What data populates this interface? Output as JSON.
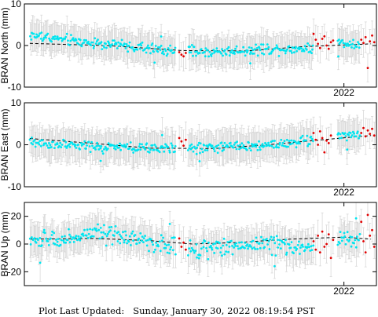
{
  "footer": {
    "label": "Plot Last Updated:",
    "timestamp": "Sunday, January 30, 2022 08:19:54 PST"
  },
  "colors": {
    "cyan": "#00e5f0",
    "red": "#e00000",
    "errorbar": "#d4d4d4",
    "trend": "#000000"
  },
  "chart_data": [
    {
      "type": "scatter",
      "ylabel": "BRAN North (mm)",
      "ylim": [
        -10,
        10
      ],
      "yticks": [
        -10,
        0,
        10
      ],
      "xlim": [
        2019.05,
        2022.3
      ],
      "xtick_label": "2022",
      "xtick_value": 2022.0,
      "grid": false,
      "errorbars": true,
      "error_half_range": 3.5,
      "trend": {
        "x": [
          2019.1,
          2019.8,
          2020.5,
          2021.1,
          2021.6,
          2022.25
        ],
        "y": [
          0.5,
          0.0,
          -1.2,
          -1.3,
          -0.3,
          0.4
        ]
      },
      "series": [
        {
          "color": "cyan",
          "anchors_x": [
            2019.1,
            2019.3,
            2019.6,
            2019.9,
            2020.2,
            2020.5,
            2020.8,
            2021.0,
            2021.3,
            2021.55,
            2021.7,
            2021.8,
            2022.0,
            2022.1
          ],
          "anchors_y": [
            2.5,
            1.8,
            0.8,
            0.2,
            -0.8,
            -1.4,
            -1.6,
            -1.3,
            -0.8,
            -0.8,
            -0.5,
            0.5,
            0.6,
            0.5
          ],
          "noise": 1.0,
          "ranges": [
            [
              2019.1,
              2020.45
            ],
            [
              2020.56,
              2021.72
            ],
            [
              2021.94,
              2022.15
            ]
          ],
          "count": 330
        },
        {
          "color": "red",
          "points": [
            [
              2020.48,
              -1.6
            ],
            [
              2020.5,
              -2.2
            ],
            [
              2020.52,
              -2.6
            ],
            [
              2020.54,
              -1.8
            ],
            [
              2021.72,
              2.8
            ],
            [
              2021.74,
              1.4
            ],
            [
              2021.76,
              0.4
            ],
            [
              2021.78,
              -0.6
            ],
            [
              2021.8,
              1.6
            ],
            [
              2021.82,
              2.2
            ],
            [
              2021.84,
              0.0
            ],
            [
              2021.86,
              -0.8
            ],
            [
              2021.88,
              0.8
            ],
            [
              2021.9,
              1.2
            ],
            [
              2022.16,
              1.4
            ],
            [
              2022.18,
              0.6
            ],
            [
              2022.2,
              2.0
            ],
            [
              2022.22,
              -5.4
            ],
            [
              2022.24,
              1.0
            ],
            [
              2022.26,
              2.4
            ],
            [
              2022.28,
              0.8
            ]
          ]
        }
      ]
    },
    {
      "type": "scatter",
      "ylabel": "BRAN East (mm)",
      "ylim": [
        -10,
        10
      ],
      "yticks": [
        -10,
        0,
        10
      ],
      "xlim": [
        2019.05,
        2022.3
      ],
      "xtick_label": "2022",
      "xtick_value": 2022.0,
      "grid": false,
      "errorbars": true,
      "error_half_range": 3.6,
      "trend": {
        "x": [
          2019.1,
          2019.7,
          2020.2,
          2020.8,
          2021.3,
          2021.8,
          2022.25
        ],
        "y": [
          1.5,
          0.3,
          -0.8,
          -0.9,
          0.0,
          1.2,
          2.2
        ]
      },
      "series": [
        {
          "color": "cyan",
          "anchors_x": [
            2019.1,
            2019.4,
            2019.7,
            2020.0,
            2020.3,
            2020.6,
            2020.9,
            2021.2,
            2021.5,
            2021.7,
            2022.0,
            2022.1
          ],
          "anchors_y": [
            0.5,
            0.0,
            -0.6,
            -0.8,
            -0.9,
            -0.8,
            -0.5,
            -0.2,
            0.5,
            1.2,
            2.0,
            2.2
          ],
          "noise": 1.0,
          "ranges": [
            [
              2019.1,
              2020.45
            ],
            [
              2020.56,
              2021.72
            ],
            [
              2021.94,
              2022.15
            ]
          ],
          "count": 330
        },
        {
          "color": "red",
          "points": [
            [
              2020.48,
              1.6
            ],
            [
              2020.5,
              0.8
            ],
            [
              2020.52,
              -0.2
            ],
            [
              2020.54,
              1.2
            ],
            [
              2021.72,
              2.8
            ],
            [
              2021.74,
              1.2
            ],
            [
              2021.76,
              0.0
            ],
            [
              2021.78,
              3.2
            ],
            [
              2021.8,
              1.6
            ],
            [
              2021.82,
              -1.8
            ],
            [
              2021.84,
              1.0
            ],
            [
              2021.86,
              0.4
            ],
            [
              2021.88,
              2.2
            ],
            [
              2022.16,
              2.8
            ],
            [
              2022.18,
              4.0
            ],
            [
              2022.2,
              2.0
            ],
            [
              2022.22,
              3.4
            ],
            [
              2022.24,
              2.6
            ],
            [
              2022.26,
              3.8
            ],
            [
              2022.28,
              2.2
            ]
          ]
        }
      ]
    },
    {
      "type": "scatter",
      "ylabel": "BRAN Up (mm)",
      "ylim": [
        -30,
        30
      ],
      "yticks": [
        -20,
        0,
        20
      ],
      "xlim": [
        2019.05,
        2022.3
      ],
      "xtick_label": "2022",
      "xtick_value": 2022.0,
      "grid": false,
      "errorbars": true,
      "error_half_range": 11.0,
      "trend": {
        "x": [
          2019.1,
          2019.7,
          2020.2,
          2020.6,
          2021.0,
          2021.5,
          2022.0,
          2022.25
        ],
        "y": [
          3.5,
          4.0,
          2.5,
          0.0,
          1.0,
          3.5,
          5.0,
          3.5
        ]
      },
      "series": [
        {
          "color": "cyan",
          "anchors_x": [
            2019.1,
            2019.4,
            2019.7,
            2020.0,
            2020.3,
            2020.55,
            2020.8,
            2021.1,
            2021.4,
            2021.6,
            2021.75,
            2022.0,
            2022.15
          ],
          "anchors_y": [
            2.0,
            3.5,
            8.0,
            4.0,
            0.0,
            -4.0,
            -3.0,
            0.0,
            0.0,
            -3.0,
            -2.0,
            4.0,
            2.0
          ],
          "noise": 5.0,
          "ranges": [
            [
              2019.1,
              2020.45
            ],
            [
              2020.56,
              2021.72
            ],
            [
              2021.94,
              2022.15
            ]
          ],
          "count": 330
        },
        {
          "color": "red",
          "points": [
            [
              2020.48,
              4.0
            ],
            [
              2020.5,
              -2.0
            ],
            [
              2020.52,
              1.0
            ],
            [
              2020.54,
              -4.0
            ],
            [
              2021.72,
              2.0
            ],
            [
              2021.74,
              -4.0
            ],
            [
              2021.76,
              6.0
            ],
            [
              2021.78,
              -6.0
            ],
            [
              2021.8,
              9.0
            ],
            [
              2021.82,
              -2.0
            ],
            [
              2021.84,
              0.0
            ],
            [
              2021.86,
              7.0
            ],
            [
              2021.88,
              -10.0
            ],
            [
              2021.9,
              3.0
            ],
            [
              2022.16,
              16.0
            ],
            [
              2022.18,
              2.0
            ],
            [
              2022.2,
              -6.0
            ],
            [
              2022.22,
              21.0
            ],
            [
              2022.24,
              6.0
            ],
            [
              2022.26,
              10.0
            ],
            [
              2022.28,
              -2.0
            ]
          ]
        }
      ]
    }
  ]
}
